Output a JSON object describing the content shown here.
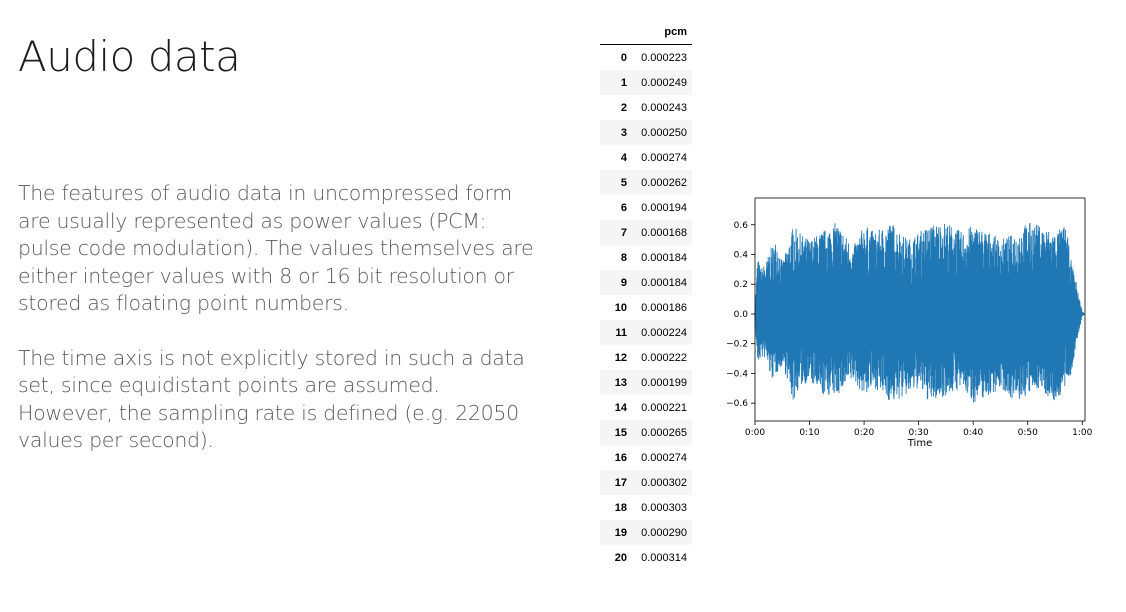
{
  "slide": {
    "title": "Audio data",
    "paragraphs": [
      "The features of audio data in uncompressed form are usually represented as power values (PCM: pulse code modulation). The values themselves are either integer values with 8 or 16 bit resolution or stored as floating point numbers.",
      "The time axis is not explicitly stored in such a data set, since equidistant points are assumed. However, the sampling rate is defined (e.g. 22050 values per second)."
    ]
  },
  "table": {
    "column": "pcm",
    "rows": [
      {
        "index": "0",
        "value": "0.000223"
      },
      {
        "index": "1",
        "value": "0.000249"
      },
      {
        "index": "2",
        "value": "0.000243"
      },
      {
        "index": "3",
        "value": "0.000250"
      },
      {
        "index": "4",
        "value": "0.000274"
      },
      {
        "index": "5",
        "value": "0.000262"
      },
      {
        "index": "6",
        "value": "0.000194"
      },
      {
        "index": "7",
        "value": "0.000168"
      },
      {
        "index": "8",
        "value": "0.000184"
      },
      {
        "index": "9",
        "value": "0.000184"
      },
      {
        "index": "10",
        "value": "0.000186"
      },
      {
        "index": "11",
        "value": "0.000224"
      },
      {
        "index": "12",
        "value": "0.000222"
      },
      {
        "index": "13",
        "value": "0.000199"
      },
      {
        "index": "14",
        "value": "0.000221"
      },
      {
        "index": "15",
        "value": "0.000265"
      },
      {
        "index": "16",
        "value": "0.000274"
      },
      {
        "index": "17",
        "value": "0.000302"
      },
      {
        "index": "18",
        "value": "0.000303"
      },
      {
        "index": "19",
        "value": "0.000290"
      },
      {
        "index": "20",
        "value": "0.000314"
      }
    ]
  },
  "chart_data": {
    "type": "line",
    "xlabel": "Time",
    "ylabel": "",
    "xlim": [
      0,
      60.5
    ],
    "ylim": [
      -0.72,
      0.78
    ],
    "xticks": [
      0,
      10,
      20,
      30,
      40,
      50,
      60
    ],
    "xtick_labels": [
      "0:00",
      "0:10",
      "0:20",
      "0:30",
      "0:40",
      "0:50",
      "1:00"
    ],
    "yticks": [
      0.6,
      0.4,
      0.2,
      0.0,
      -0.2,
      -0.4,
      -0.6
    ],
    "ytick_labels": [
      "0.6",
      "0.4",
      "0.2",
      "0.0",
      "−0.2",
      "−0.4",
      "−0.6"
    ],
    "series_color": "#1f77b4",
    "envelope": {
      "x": [
        0,
        0.5,
        1,
        2,
        3,
        4,
        5,
        6,
        7,
        8,
        10,
        12,
        15,
        18,
        20,
        22,
        25,
        28,
        30,
        32,
        35,
        38,
        40,
        43,
        45,
        48,
        50,
        52,
        55,
        57,
        58,
        59,
        59.5,
        60,
        60.5
      ],
      "max": [
        0.05,
        0.4,
        0.3,
        0.35,
        0.45,
        0.5,
        0.35,
        0.45,
        0.6,
        0.55,
        0.5,
        0.55,
        0.62,
        0.45,
        0.6,
        0.55,
        0.62,
        0.5,
        0.55,
        0.6,
        0.62,
        0.55,
        0.6,
        0.55,
        0.5,
        0.55,
        0.62,
        0.6,
        0.55,
        0.6,
        0.35,
        0.2,
        0.1,
        0.02,
        0.0
      ],
      "min": [
        -0.05,
        -0.35,
        -0.3,
        -0.3,
        -0.45,
        -0.4,
        -0.35,
        -0.45,
        -0.6,
        -0.5,
        -0.45,
        -0.55,
        -0.55,
        -0.45,
        -0.55,
        -0.5,
        -0.6,
        -0.55,
        -0.5,
        -0.6,
        -0.55,
        -0.5,
        -0.6,
        -0.55,
        -0.5,
        -0.6,
        -0.55,
        -0.5,
        -0.6,
        -0.5,
        -0.4,
        -0.2,
        -0.1,
        -0.02,
        0.0
      ]
    }
  }
}
